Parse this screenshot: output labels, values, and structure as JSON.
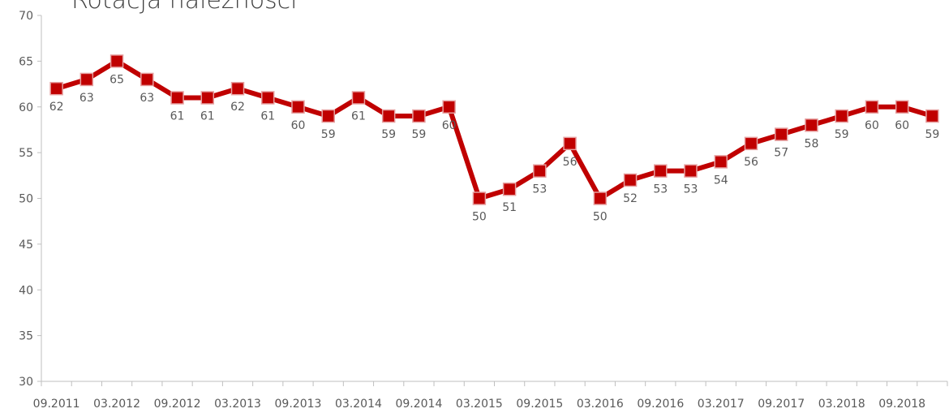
{
  "chart_data": {
    "type": "line",
    "title": "Rotacja należności",
    "x_tick_labels": [
      "09.2011",
      "03.2012",
      "09.2012",
      "03.2013",
      "09.2013",
      "03.2014",
      "09.2014",
      "03.2015",
      "09.2015",
      "03.2016",
      "09.2016",
      "03.2017",
      "09.2017",
      "03.2018",
      "09.2018"
    ],
    "ylim": [
      30,
      70
    ],
    "y_ticks": [
      30,
      35,
      40,
      45,
      50,
      55,
      60,
      65,
      70
    ],
    "grid": false,
    "series": [
      {
        "name": "",
        "color": "#c00000",
        "values": [
          62,
          63,
          65,
          63,
          61,
          61,
          62,
          61,
          60,
          59,
          61,
          59,
          59,
          60,
          50,
          51,
          53,
          56,
          50,
          52,
          53,
          53,
          54,
          56,
          57,
          58,
          59,
          60,
          60,
          59
        ],
        "label_values": [
          62,
          63,
          65,
          63,
          61,
          61,
          62,
          61,
          60,
          59,
          61,
          59,
          59,
          60,
          50,
          51,
          53,
          56,
          50,
          52,
          53,
          53,
          54,
          56,
          57,
          58,
          59,
          60,
          60,
          59
        ]
      }
    ]
  }
}
